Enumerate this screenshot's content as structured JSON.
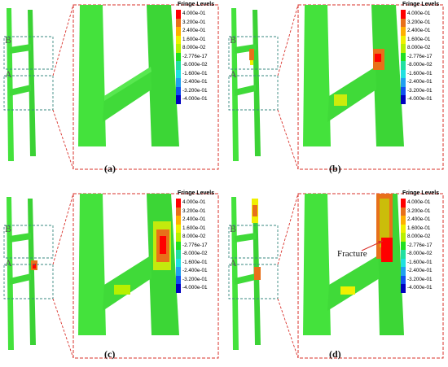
{
  "legend": {
    "title": "Fringe Levels",
    "levels": [
      "4.000e-01",
      "3.200e-01",
      "2.400e-01",
      "1.600e-01",
      "8.000e-02",
      "-2.776e-17",
      "-8.000e-02",
      "-1.600e-01",
      "-2.400e-01",
      "-3.200e-01",
      "-4.000e-01"
    ],
    "colors": [
      "#ff0000",
      "#e8701a",
      "#ffb000",
      "#f0f000",
      "#b8f000",
      "#20e020",
      "#20e0a0",
      "#20e0e0",
      "#20a0f0",
      "#1050f0",
      "#0000c0"
    ]
  },
  "colors": {
    "body": "#44e23c",
    "body_dark": "#2fbd32",
    "zoom_box": "#d9302a",
    "detail_box": "#3a8a80"
  },
  "box_labels": {
    "upper": "B",
    "lower": "A"
  },
  "panels": [
    {
      "caption": "(a)",
      "annotation": ""
    },
    {
      "caption": "(b)",
      "annotation": ""
    },
    {
      "caption": "(c)",
      "annotation": ""
    },
    {
      "caption": "(d)",
      "annotation": "Fracture"
    }
  ]
}
